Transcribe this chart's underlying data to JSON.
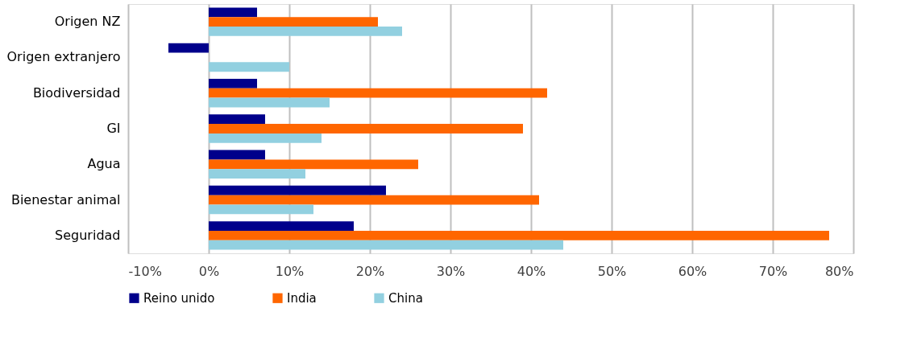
{
  "chart_data": {
    "type": "bar",
    "orientation": "horizontal",
    "categories": [
      "Origen NZ",
      "Origen extranjero",
      "Biodiversidad",
      "GI",
      "Agua",
      "Bienestar animal",
      "Seguridad"
    ],
    "series": [
      {
        "name": "Reino unido",
        "color": "#00008b",
        "values": [
          6,
          -5,
          6,
          7,
          7,
          22,
          18
        ]
      },
      {
        "name": "India",
        "color": "#ff6600",
        "values": [
          21,
          null,
          42,
          39,
          26,
          41,
          77
        ]
      },
      {
        "name": "China",
        "color": "#92d0e0",
        "values": [
          24,
          10,
          15,
          14,
          12,
          13,
          44
        ]
      }
    ],
    "xlim": [
      -10,
      80
    ],
    "xticks": [
      {
        "value": -10,
        "label": "-10%"
      },
      {
        "value": 0,
        "label": "0%"
      },
      {
        "value": 10,
        "label": "10%"
      },
      {
        "value": 20,
        "label": "20%"
      },
      {
        "value": 30,
        "label": "30%"
      },
      {
        "value": 40,
        "label": "40%"
      },
      {
        "value": 50,
        "label": "50%"
      },
      {
        "value": 60,
        "label": "60%"
      },
      {
        "value": 70,
        "label": "70%"
      },
      {
        "value": 80,
        "label": "80%"
      }
    ],
    "grid": "x",
    "legend": "bottom"
  }
}
